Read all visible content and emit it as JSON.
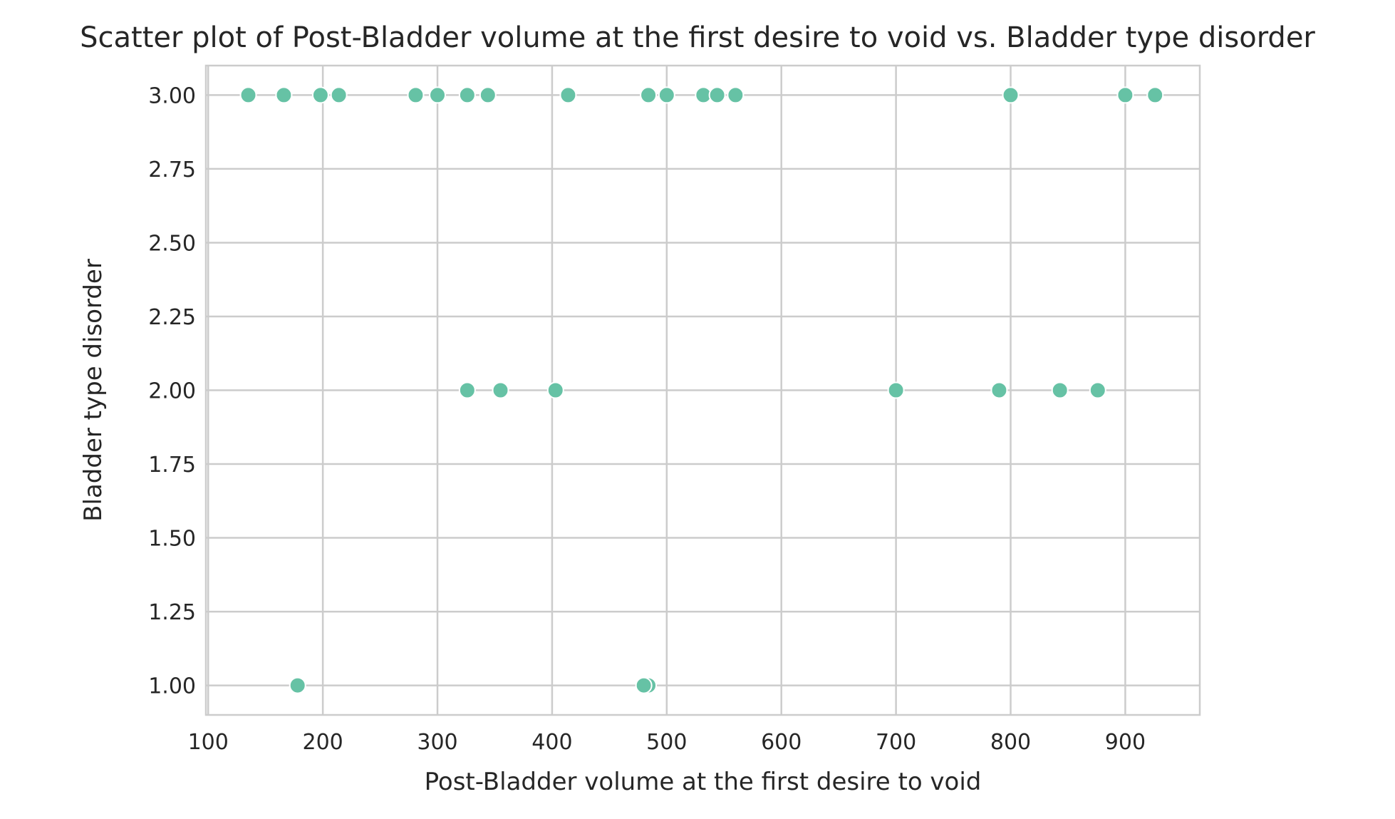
{
  "chart_data": {
    "type": "scatter",
    "title": "Scatter plot of Post-Bladder volume at the first desire to void vs. Bladder type disorder",
    "xlabel": "Post-Bladder volume at the first desire to void",
    "ylabel": "Bladder type disorder",
    "xlim": [
      98,
      965
    ],
    "ylim": [
      0.9,
      3.1
    ],
    "xticks": [
      100,
      200,
      300,
      400,
      500,
      600,
      700,
      800,
      900
    ],
    "yticks": [
      1.0,
      1.25,
      1.5,
      1.75,
      2.0,
      2.25,
      2.5,
      2.75,
      3.0
    ],
    "ytick_labels": [
      "1.00",
      "1.25",
      "1.50",
      "1.75",
      "2.00",
      "2.25",
      "2.50",
      "2.75",
      "3.00"
    ],
    "grid": true,
    "colors": {
      "point": "#66c2a5",
      "grid": "#cccccc"
    },
    "series": [
      {
        "points": [
          {
            "x": 135,
            "y": 3
          },
          {
            "x": 166,
            "y": 3
          },
          {
            "x": 198,
            "y": 3
          },
          {
            "x": 214,
            "y": 3
          },
          {
            "x": 281,
            "y": 3
          },
          {
            "x": 300,
            "y": 3
          },
          {
            "x": 326,
            "y": 3
          },
          {
            "x": 344,
            "y": 3
          },
          {
            "x": 414,
            "y": 3
          },
          {
            "x": 484,
            "y": 3
          },
          {
            "x": 500,
            "y": 3
          },
          {
            "x": 532,
            "y": 3
          },
          {
            "x": 544,
            "y": 3
          },
          {
            "x": 560,
            "y": 3
          },
          {
            "x": 800,
            "y": 3
          },
          {
            "x": 900,
            "y": 3
          },
          {
            "x": 926,
            "y": 3
          },
          {
            "x": 326,
            "y": 2
          },
          {
            "x": 355,
            "y": 2
          },
          {
            "x": 403,
            "y": 2
          },
          {
            "x": 700,
            "y": 2
          },
          {
            "x": 790,
            "y": 2
          },
          {
            "x": 843,
            "y": 2
          },
          {
            "x": 876,
            "y": 2
          },
          {
            "x": 178,
            "y": 1
          },
          {
            "x": 484,
            "y": 1
          },
          {
            "x": 480,
            "y": 1
          }
        ]
      }
    ]
  }
}
